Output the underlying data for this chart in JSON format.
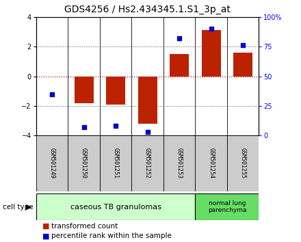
{
  "title": "GDS4256 / Hs2.434345.1.S1_3p_at",
  "samples": [
    "GSM501249",
    "GSM501250",
    "GSM501251",
    "GSM501252",
    "GSM501253",
    "GSM501254",
    "GSM501255"
  ],
  "transformed_counts": [
    0.0,
    -1.8,
    -1.9,
    -3.2,
    1.5,
    3.1,
    1.6
  ],
  "percentile_ranks": [
    35,
    7,
    8,
    3,
    82,
    90,
    76
  ],
  "ylim": [
    -4,
    4
  ],
  "yticks": [
    -4,
    -2,
    0,
    2,
    4
  ],
  "y2ticks": [
    0,
    25,
    50,
    75,
    100
  ],
  "y2labels": [
    "0",
    "25",
    "50",
    "75",
    "100%"
  ],
  "bar_color": "#bb2200",
  "dot_color": "#0000cc",
  "zero_line_color": "#cc0000",
  "grid_color": "#555555",
  "bg_plot": "#ffffff",
  "bg_sample": "#cccccc",
  "bg_group1": "#ccffcc",
  "bg_group2": "#66dd66",
  "group1_label": "caseous TB granulomas",
  "group2_label": "normal lung\nparenchyma",
  "cell_type_label": "cell type",
  "legend_bar_label": "transformed count",
  "legend_dot_label": "percentile rank within the sample",
  "title_fontsize": 10,
  "tick_fontsize": 7,
  "sample_fontsize": 6,
  "group_fontsize": 8,
  "legend_fontsize": 7.5
}
